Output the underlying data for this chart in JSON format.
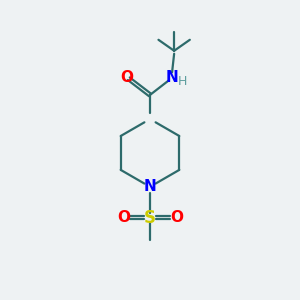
{
  "background_color": "#eef2f3",
  "bond_color": "#2d6b6b",
  "atom_colors": {
    "O": "#ff0000",
    "N": "#0000ff",
    "S": "#cccc00",
    "H": "#5f9f9f",
    "C": "#2d6b6b"
  },
  "figsize": [
    3.0,
    3.0
  ],
  "dpi": 100
}
